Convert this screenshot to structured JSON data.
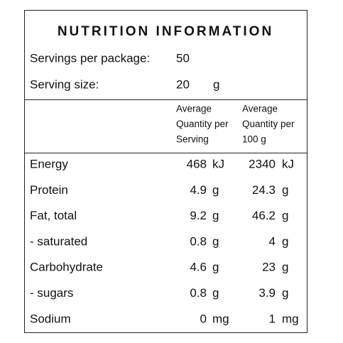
{
  "title": "NUTRITION INFORMATION",
  "servings": {
    "label": "Servings per package:",
    "value": 50
  },
  "serving_size": {
    "label": "Serving size:",
    "value": 20,
    "unit": "g"
  },
  "columns": [
    {
      "lines": [
        "Average",
        "Quantity per",
        "Serving"
      ]
    },
    {
      "lines": [
        "Average",
        "Quantity per",
        "100 g"
      ]
    }
  ],
  "rows": [
    {
      "name": "Energy",
      "per_serving": {
        "value": 468,
        "unit": "kJ"
      },
      "per_100g": {
        "value": 2340,
        "unit": "kJ"
      }
    },
    {
      "name": "Protein",
      "per_serving": {
        "value": 4.9,
        "unit": "g"
      },
      "per_100g": {
        "value": 24.3,
        "unit": "g"
      }
    },
    {
      "name": "Fat, total",
      "per_serving": {
        "value": 9.2,
        "unit": "g"
      },
      "per_100g": {
        "value": 46.2,
        "unit": "g"
      }
    },
    {
      "name": "- saturated",
      "per_serving": {
        "value": 0.8,
        "unit": "g"
      },
      "per_100g": {
        "value": 4,
        "unit": "g"
      }
    },
    {
      "name": "Carbohydrate",
      "per_serving": {
        "value": 4.6,
        "unit": "g"
      },
      "per_100g": {
        "value": 23,
        "unit": "g"
      }
    },
    {
      "name": "- sugars",
      "per_serving": {
        "value": 0.8,
        "unit": "g"
      },
      "per_100g": {
        "value": 3.9,
        "unit": "g"
      }
    },
    {
      "name": "Sodium",
      "per_serving": {
        "value": 0,
        "unit": "mg"
      },
      "per_100g": {
        "value": 1,
        "unit": "mg"
      }
    }
  ]
}
